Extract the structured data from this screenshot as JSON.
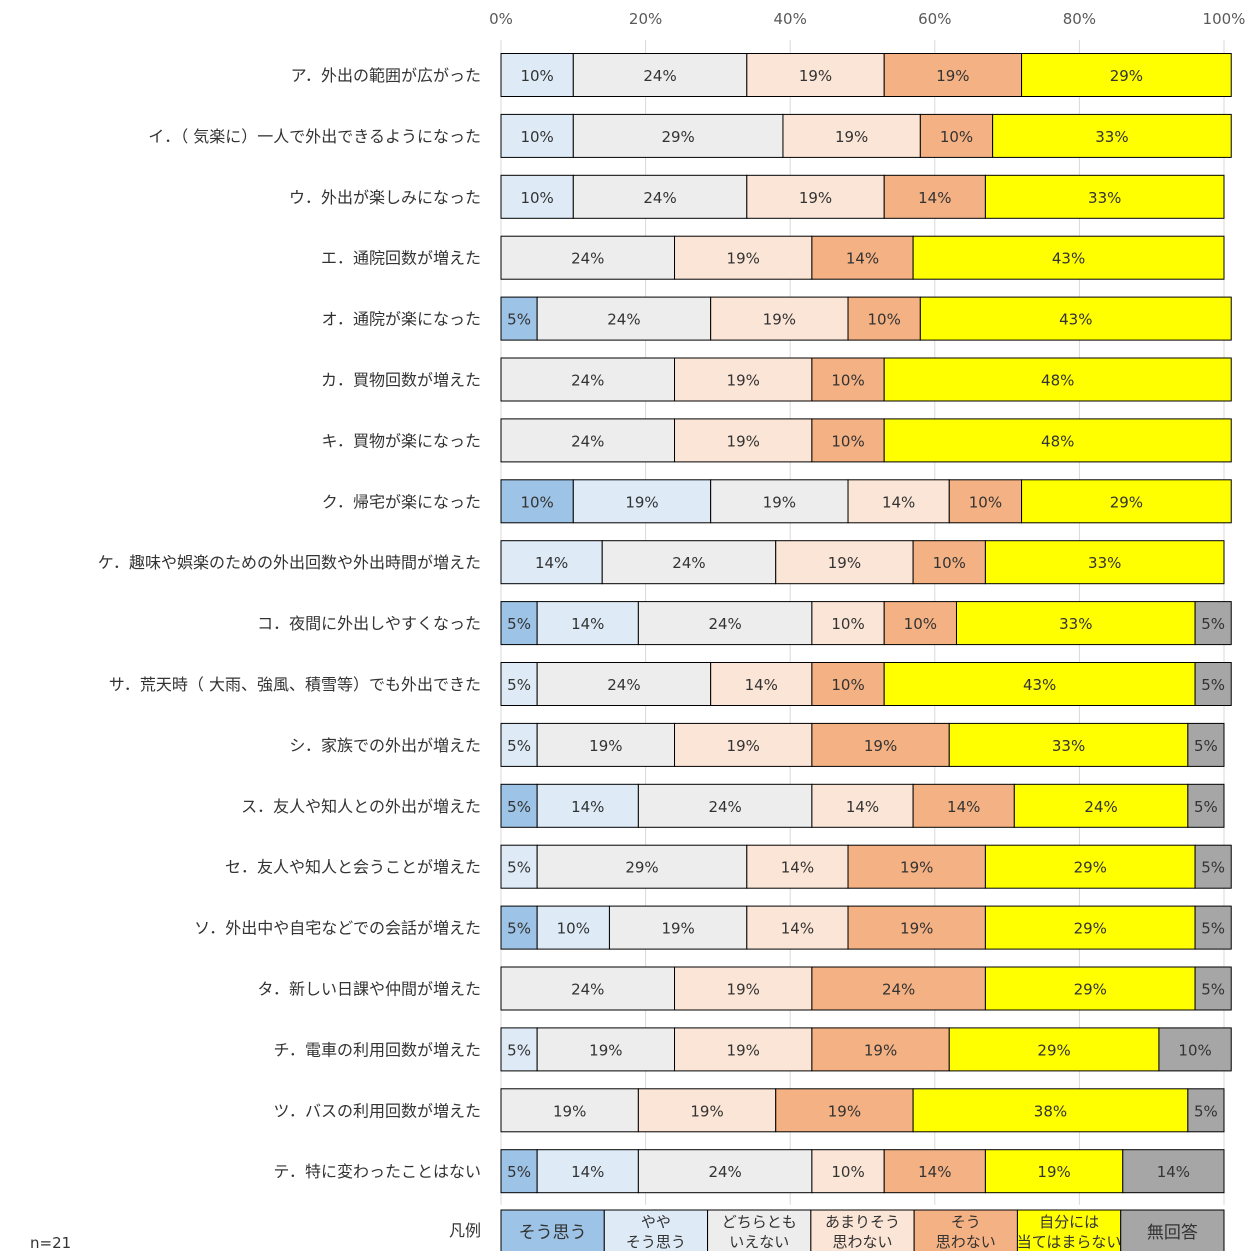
{
  "chart_data": {
    "type": "bar",
    "orientation": "horizontal",
    "stacked": true,
    "percent_stacked": true,
    "xlim": [
      0,
      100
    ],
    "x_ticks": [
      "0%",
      "20%",
      "40%",
      "60%",
      "80%",
      "100%"
    ],
    "grid": true,
    "legend_placement": "bottom",
    "legend_title": "凡例",
    "categories": [
      "ア．外出の範囲が広がった",
      "イ．（ 気楽に）一人で外出できるようになった",
      "ウ．外出が楽しみになった",
      "エ．通院回数が増えた",
      "オ．通院が楽になった",
      "カ．買物回数が増えた",
      "キ．買物が楽になった",
      "ク．帰宅が楽になった",
      "ケ．趣味や娯楽のための外出回数や外出時間が増えた",
      "コ．夜間に外出しやすくなった",
      "サ．荒天時（ 大雨、強風、積雪等）でも外出できた",
      "シ．家族での外出が増えた",
      "ス．友人や知人との外出が増えた",
      "セ．友人や知人と会うことが増えた",
      "ソ．外出中や自宅などでの会話が増えた",
      "タ．新しい日課や仲間が増えた",
      "チ．電車の利用回数が増えた",
      "ツ．バスの利用回数が増えた",
      "テ．特に変わったことはない"
    ],
    "series": [
      {
        "name": "そう思う",
        "color": "#9DC3E6",
        "values": [
          0,
          0,
          0,
          0,
          5,
          0,
          0,
          10,
          0,
          5,
          0,
          0,
          5,
          0,
          5,
          0,
          0,
          0,
          5
        ]
      },
      {
        "name": "ややそう思う",
        "color": "#DEEBF7",
        "values": [
          10,
          10,
          10,
          0,
          0,
          0,
          0,
          19,
          14,
          14,
          5,
          5,
          14,
          5,
          10,
          0,
          5,
          0,
          14
        ]
      },
      {
        "name": "どちらともいえない",
        "color": "#EDEDED",
        "values": [
          24,
          29,
          24,
          24,
          24,
          24,
          24,
          19,
          24,
          24,
          24,
          19,
          24,
          29,
          19,
          24,
          19,
          19,
          24
        ]
      },
      {
        "name": "あまりそう思わない",
        "color": "#FBE5D6",
        "values": [
          19,
          19,
          19,
          19,
          19,
          19,
          19,
          14,
          19,
          10,
          14,
          19,
          14,
          14,
          14,
          19,
          19,
          19,
          10
        ]
      },
      {
        "name": "そう思わない",
        "color": "#F4B183",
        "values": [
          19,
          10,
          14,
          14,
          10,
          10,
          10,
          10,
          10,
          10,
          10,
          19,
          14,
          19,
          19,
          24,
          19,
          19,
          14
        ]
      },
      {
        "name": "自分には当てはまらない",
        "color": "#FFFF00",
        "values": [
          29,
          33,
          33,
          43,
          43,
          48,
          48,
          29,
          33,
          33,
          43,
          33,
          24,
          29,
          29,
          29,
          29,
          38,
          19
        ]
      },
      {
        "name": "無回答",
        "color": "#A6A6A6",
        "values": [
          0,
          0,
          0,
          0,
          0,
          0,
          0,
          0,
          0,
          5,
          5,
          5,
          5,
          5,
          5,
          5,
          10,
          5,
          14
        ]
      }
    ],
    "legend_labels": [
      [
        "そう思う"
      ],
      [
        "やや",
        "そう思う"
      ],
      [
        "どちらとも",
        "いえない"
      ],
      [
        "あまりそう",
        "思わない"
      ],
      [
        "そう",
        "思わない"
      ],
      [
        "自分には",
        "当てはまらない"
      ],
      [
        "無回答"
      ]
    ]
  },
  "note": "n=21"
}
